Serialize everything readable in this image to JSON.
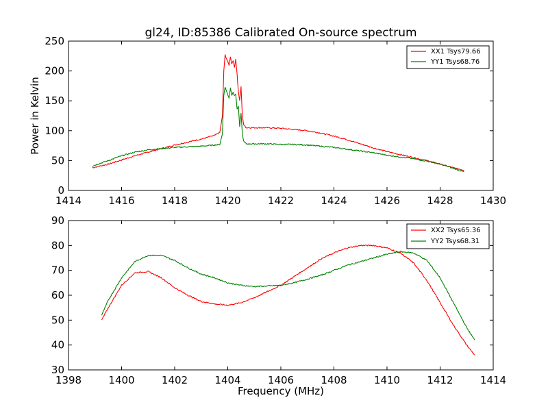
{
  "figure": {
    "title": "gl24, ID:85386 Calibrated On-source spectrum"
  },
  "chart_data": [
    {
      "type": "line",
      "title": "gl24, ID:85386 Calibrated On-source spectrum",
      "xlabel": "",
      "ylabel": "Power in Kelvin",
      "xlim": [
        1414,
        1430
      ],
      "ylim": [
        0,
        250
      ],
      "xticks": [
        1414,
        1416,
        1418,
        1420,
        1422,
        1424,
        1426,
        1428,
        1430
      ],
      "yticks": [
        0,
        50,
        100,
        150,
        200,
        250
      ],
      "grid": false,
      "legend_position": "top-right",
      "series": [
        {
          "name": "XX1 Tsys79.66",
          "color": "#ff0000",
          "x": [
            1414.9,
            1415.5,
            1416.0,
            1416.5,
            1417.0,
            1417.5,
            1418.0,
            1418.5,
            1419.0,
            1419.5,
            1419.7,
            1419.8,
            1419.85,
            1419.9,
            1420.0,
            1420.05,
            1420.1,
            1420.15,
            1420.2,
            1420.25,
            1420.3,
            1420.35,
            1420.4,
            1420.45,
            1420.5,
            1420.55,
            1420.6,
            1420.7,
            1421.0,
            1421.5,
            1422.0,
            1422.5,
            1423.0,
            1423.5,
            1424.0,
            1424.5,
            1425.0,
            1425.5,
            1426.0,
            1426.5,
            1427.0,
            1427.5,
            1428.0,
            1428.5,
            1428.9
          ],
          "values": [
            38,
            44,
            51,
            58,
            64,
            70,
            76,
            81,
            86,
            92,
            97,
            125,
            200,
            227,
            215,
            210,
            224,
            212,
            218,
            206,
            220,
            195,
            165,
            150,
            174,
            125,
            110,
            105,
            105,
            105,
            104,
            102,
            100,
            96,
            91,
            85,
            78,
            71,
            65,
            60,
            55,
            50,
            44,
            38,
            34
          ]
        },
        {
          "name": "YY1 Tsys68.76",
          "color": "#008000",
          "x": [
            1414.9,
            1415.5,
            1416.0,
            1416.5,
            1417.0,
            1417.5,
            1418.0,
            1418.5,
            1419.0,
            1419.5,
            1419.7,
            1419.8,
            1419.85,
            1419.9,
            1420.0,
            1420.05,
            1420.1,
            1420.15,
            1420.2,
            1420.25,
            1420.3,
            1420.35,
            1420.4,
            1420.45,
            1420.5,
            1420.55,
            1420.6,
            1420.7,
            1421.0,
            1421.5,
            1422.0,
            1422.5,
            1423.0,
            1423.5,
            1424.0,
            1424.5,
            1425.0,
            1425.5,
            1426.0,
            1426.5,
            1427.0,
            1427.5,
            1428.0,
            1428.5,
            1428.9
          ],
          "values": [
            41,
            50,
            58,
            64,
            68,
            70,
            72,
            73,
            74,
            76,
            77,
            95,
            160,
            173,
            160,
            155,
            172,
            160,
            165,
            158,
            162,
            136,
            140,
            106,
            130,
            95,
            82,
            78,
            78,
            78,
            77,
            77,
            76,
            74,
            72,
            69,
            66,
            63,
            59,
            56,
            53,
            49,
            44,
            37,
            31
          ]
        }
      ]
    },
    {
      "type": "line",
      "title": "",
      "xlabel": "Frequency (MHz)",
      "ylabel": "",
      "xlim": [
        1398,
        1414
      ],
      "ylim": [
        30,
        90
      ],
      "xticks": [
        1398,
        1400,
        1402,
        1404,
        1406,
        1408,
        1410,
        1412,
        1414
      ],
      "yticks": [
        30,
        40,
        50,
        60,
        70,
        80,
        90
      ],
      "grid": false,
      "legend_position": "top-right",
      "series": [
        {
          "name": "XX2 Tsys65.36",
          "color": "#ff0000",
          "x": [
            1399.25,
            1399.5,
            1400.0,
            1400.5,
            1401.0,
            1401.5,
            1402.0,
            1402.5,
            1403.0,
            1403.5,
            1404.0,
            1404.5,
            1405.0,
            1405.5,
            1406.0,
            1406.5,
            1407.0,
            1407.5,
            1408.0,
            1408.5,
            1409.0,
            1409.5,
            1410.0,
            1410.5,
            1411.0,
            1411.5,
            1412.0,
            1412.5,
            1413.0,
            1413.3
          ],
          "values": [
            50,
            55,
            64,
            69,
            69.5,
            67,
            63,
            60,
            57.5,
            56.5,
            56,
            57,
            59,
            61.5,
            64,
            67.5,
            71,
            74.5,
            77,
            79,
            80,
            80,
            79,
            77,
            73,
            66,
            57,
            48,
            40,
            36
          ]
        },
        {
          "name": "YY2 Tsys68.31",
          "color": "#008000",
          "x": [
            1399.25,
            1399.5,
            1400.0,
            1400.5,
            1401.0,
            1401.5,
            1402.0,
            1402.5,
            1403.0,
            1403.5,
            1404.0,
            1404.5,
            1405.0,
            1405.5,
            1406.0,
            1406.5,
            1407.0,
            1407.5,
            1408.0,
            1408.5,
            1409.0,
            1409.5,
            1410.0,
            1410.5,
            1411.0,
            1411.5,
            1412.0,
            1412.5,
            1413.0,
            1413.3
          ],
          "values": [
            52,
            58,
            67,
            73.5,
            76,
            76,
            74,
            71,
            68.5,
            67,
            65,
            64,
            63.5,
            63.7,
            64,
            65,
            66.5,
            68,
            70,
            72,
            73.5,
            75,
            76.5,
            77.5,
            77,
            74,
            67,
            57,
            47,
            42
          ]
        }
      ]
    }
  ]
}
